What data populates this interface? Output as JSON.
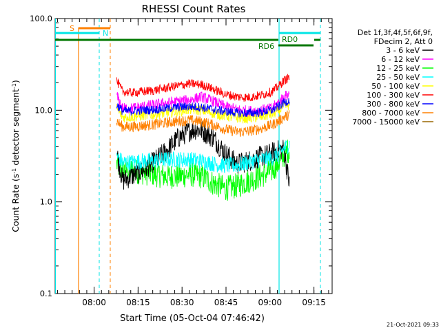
{
  "chart_data": {
    "type": "line",
    "title": "RHESSI Count Rates",
    "xlabel": "Start Time (05-Oct-04 07:46:42)",
    "ylabel_main": "Count Rate (s",
    "ylabel_sup1": "-1",
    "ylabel_mid": " detector segment",
    "ylabel_sup2": "-1",
    "ylabel_end": ")",
    "yscale": "log",
    "ylim": [
      0.1,
      100.0
    ],
    "xlim_minutes": [
      0,
      94.5
    ],
    "xticks": [
      {
        "t": 13.3,
        "label": "08:00"
      },
      {
        "t": 28.3,
        "label": "08:15"
      },
      {
        "t": 43.3,
        "label": "08:30"
      },
      {
        "t": 58.3,
        "label": "08:45"
      },
      {
        "t": 73.3,
        "label": "09:00"
      },
      {
        "t": 88.3,
        "label": "09:15"
      }
    ],
    "yticks": [
      {
        "v": 100.0,
        "label": "100.0"
      },
      {
        "v": 10.0,
        "label": "10.0"
      },
      {
        "v": 1.0,
        "label": "1.0"
      },
      {
        "v": 0.1,
        "label": "0.1"
      }
    ],
    "legend_header": [
      "Det 1f,3f,4f,5f,6f,9f,",
      "FDecim 2, Att 0"
    ],
    "series": [
      {
        "name": "3 - 6 keV",
        "color": "#000000",
        "x": [
          21,
          23,
          26,
          30,
          34,
          38,
          42,
          46,
          48,
          50,
          54,
          58,
          62,
          66,
          70,
          74,
          76,
          78,
          80
        ],
        "y": [
          3.5,
          1.7,
          1.9,
          2.2,
          2.8,
          3.6,
          5.0,
          6.0,
          6.2,
          6.0,
          5.0,
          3.4,
          2.6,
          2.8,
          3.1,
          3.4,
          3.6,
          3.8,
          1.5
        ]
      },
      {
        "name": "6 - 12 keV",
        "color": "#ff00ff",
        "x": [
          21,
          23,
          26,
          30,
          34,
          38,
          42,
          46,
          50,
          54,
          58,
          62,
          66,
          70,
          74,
          76,
          78,
          80
        ],
        "y": [
          14.5,
          10.5,
          10.5,
          11.0,
          11.5,
          12.0,
          12.5,
          13.0,
          14.0,
          12.5,
          11.0,
          10.2,
          9.8,
          10.0,
          10.5,
          12.0,
          14.0,
          15.0
        ]
      },
      {
        "name": "12 - 25 keV",
        "color": "#00ff00",
        "x": [
          21,
          23,
          26,
          30,
          34,
          38,
          42,
          46,
          50,
          54,
          58,
          62,
          66,
          70,
          74,
          76,
          78,
          80
        ],
        "y": [
          2.6,
          2.2,
          2.2,
          2.1,
          2.0,
          1.9,
          1.9,
          2.0,
          1.9,
          1.6,
          1.4,
          1.5,
          1.7,
          1.9,
          2.2,
          2.6,
          3.2,
          3.8
        ]
      },
      {
        "name": "25 - 50 keV",
        "color": "#00ffff",
        "x": [
          21,
          23,
          26,
          30,
          34,
          38,
          42,
          46,
          50,
          54,
          58,
          62,
          66,
          70,
          74,
          76,
          78,
          80
        ],
        "y": [
          3.2,
          2.7,
          2.7,
          2.8,
          2.8,
          2.9,
          2.9,
          2.9,
          2.8,
          2.6,
          2.5,
          2.5,
          2.7,
          2.9,
          3.0,
          3.3,
          3.8,
          4.3
        ]
      },
      {
        "name": "50 - 100 keV",
        "color": "#ffff00",
        "x": [
          21,
          23,
          26,
          30,
          34,
          38,
          42,
          46,
          50,
          54,
          58,
          62,
          66,
          70,
          74,
          76,
          78,
          80
        ],
        "y": [
          10.5,
          8.4,
          8.5,
          8.8,
          9.0,
          9.4,
          9.8,
          10.2,
          10.0,
          9.3,
          8.7,
          8.3,
          8.2,
          8.5,
          9.0,
          9.8,
          11.0,
          11.5
        ]
      },
      {
        "name": "100 - 300 keV",
        "color": "#ff0000",
        "x": [
          21,
          23,
          26,
          30,
          34,
          38,
          42,
          46,
          50,
          54,
          58,
          62,
          66,
          70,
          74,
          76,
          78,
          80
        ],
        "y": [
          21,
          16,
          15.5,
          16,
          16.5,
          17.5,
          18.5,
          19.5,
          19.0,
          17.0,
          15.0,
          14.0,
          13.8,
          14.5,
          16,
          18,
          21,
          23
        ]
      },
      {
        "name": "300 - 800 keV",
        "color": "#0000ff",
        "x": [
          21,
          23,
          26,
          30,
          34,
          38,
          42,
          46,
          50,
          54,
          58,
          62,
          66,
          70,
          74,
          76,
          78,
          80
        ],
        "y": [
          11.5,
          9.8,
          9.8,
          10.0,
          10.2,
          10.5,
          10.8,
          11.0,
          10.8,
          10.2,
          9.7,
          9.4,
          9.3,
          9.5,
          10.0,
          10.8,
          12.0,
          13.0
        ]
      },
      {
        "name": "800 - 7000 keV",
        "color": "#ff8000",
        "x": [
          21,
          23,
          26,
          30,
          34,
          38,
          42,
          46,
          50,
          54,
          58,
          62,
          66,
          70,
          74,
          76,
          78,
          80
        ],
        "y": [
          7.6,
          6.6,
          6.6,
          6.8,
          7.0,
          7.3,
          7.6,
          7.8,
          7.5,
          6.9,
          6.2,
          5.8,
          5.9,
          6.3,
          6.9,
          7.5,
          8.4,
          9.0
        ]
      },
      {
        "name": "7000 - 15000 keV",
        "color": "#996600",
        "x": [],
        "y": []
      }
    ],
    "markers": {
      "cyan_solid_t": [
        0.0,
        80.7
      ],
      "cyan_dashed_t": [
        15.4,
        92.8
      ],
      "orange_solid_t": [
        8.0
      ],
      "orange_dashed_t": [
        19.0
      ],
      "S_label": "S",
      "N_label": "N",
      "RD0_label": "RD0",
      "RD6_label": "RD6"
    },
    "timestamp": "21-Oct-2021 09:33"
  }
}
